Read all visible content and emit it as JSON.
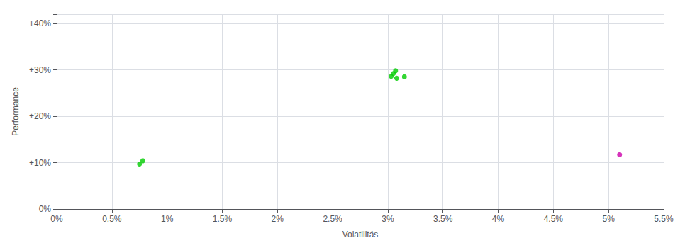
{
  "chart_data": {
    "type": "scatter",
    "xlabel": "Volatilitás",
    "ylabel": "Performance",
    "xlim": [
      0.0,
      0.055
    ],
    "ylim": [
      0.0,
      0.42
    ],
    "xticks": [
      {
        "value": 0.0,
        "label": "0%"
      },
      {
        "value": 0.005,
        "label": "0.5%"
      },
      {
        "value": 0.01,
        "label": "1%"
      },
      {
        "value": 0.015,
        "label": "1.5%"
      },
      {
        "value": 0.02,
        "label": "2%"
      },
      {
        "value": 0.025,
        "label": "2.5%"
      },
      {
        "value": 0.03,
        "label": "3%"
      },
      {
        "value": 0.035,
        "label": "3.5%"
      },
      {
        "value": 0.04,
        "label": "4%"
      },
      {
        "value": 0.045,
        "label": "4.5%"
      },
      {
        "value": 0.05,
        "label": "5%"
      },
      {
        "value": 0.055,
        "label": "5.5%"
      }
    ],
    "yticks": [
      {
        "value": 0.0,
        "label": "0%"
      },
      {
        "value": 0.1,
        "label": "+10%"
      },
      {
        "value": 0.2,
        "label": "+20%"
      },
      {
        "value": 0.3,
        "label": "+30%"
      },
      {
        "value": 0.4,
        "label": "+40%"
      }
    ],
    "grid": true,
    "series": [
      {
        "color": "#00cc00",
        "values": [
          [
            0.0078,
            0.104
          ],
          [
            0.0075,
            0.097
          ],
          [
            0.0303,
            0.286
          ],
          [
            0.0305,
            0.292
          ],
          [
            0.0307,
            0.298
          ],
          [
            0.0308,
            0.282
          ],
          [
            0.0315,
            0.285
          ]
        ]
      },
      {
        "color": "#cc00aa",
        "values": [
          [
            0.051,
            0.117
          ]
        ]
      }
    ]
  }
}
